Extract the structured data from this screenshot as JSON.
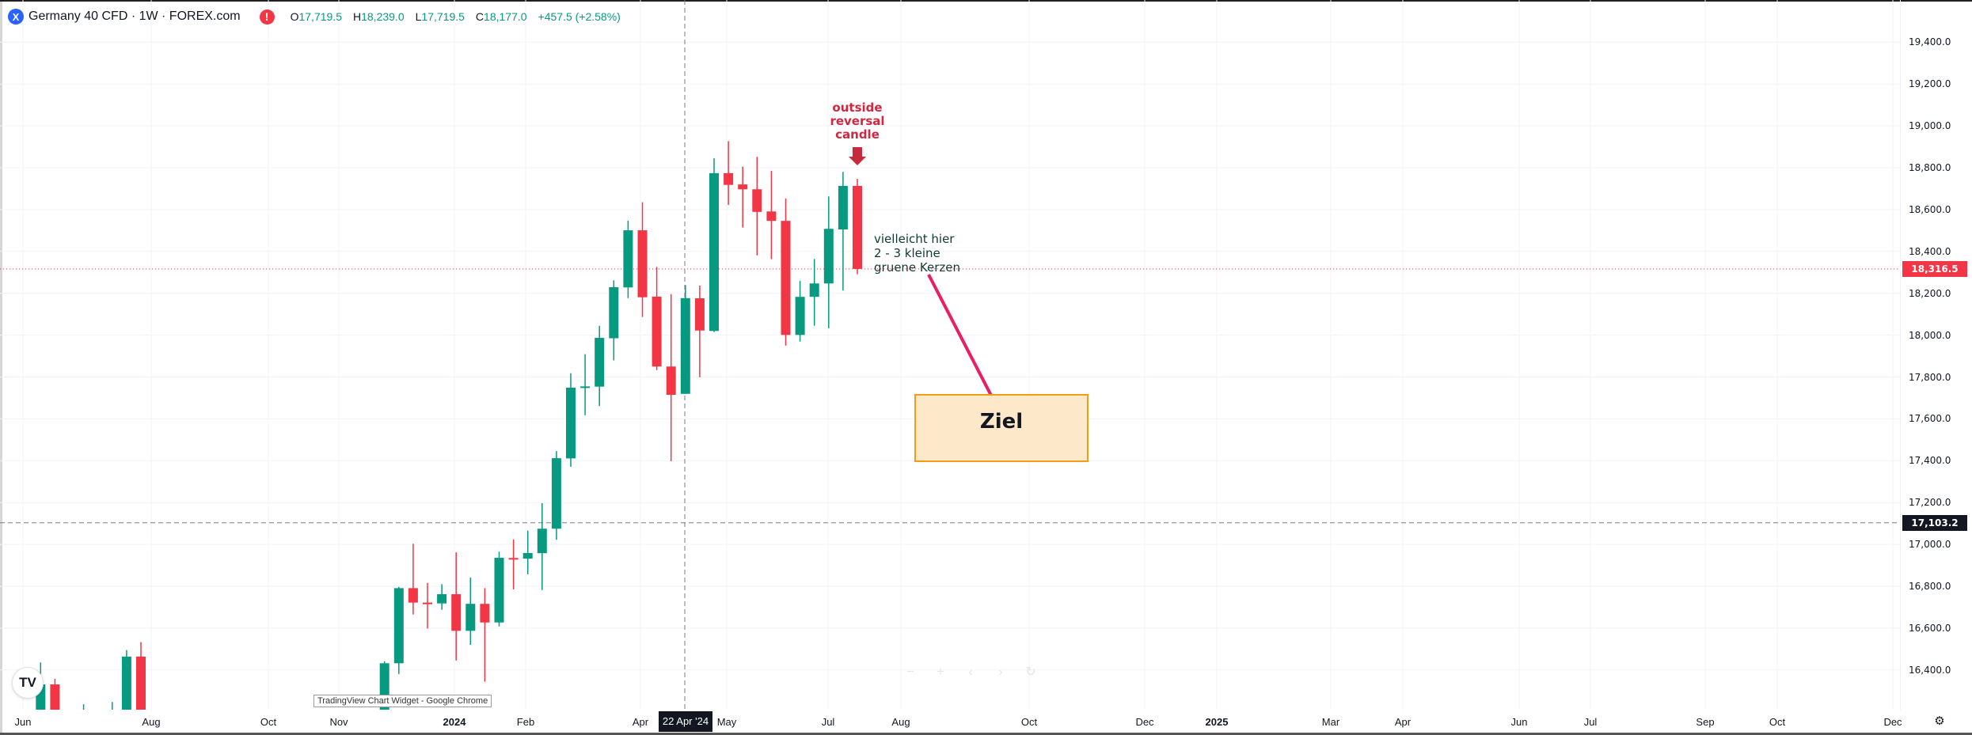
{
  "header": {
    "symbol_icon": "X",
    "title": "Germany 40 CFD · 1W · FOREX.com",
    "warning_icon": "!",
    "ohlc": {
      "o_label": "O",
      "o": "17,719.5",
      "h_label": "H",
      "h": "18,239.0",
      "l_label": "L",
      "l": "17,719.5",
      "c_label": "C",
      "c": "18,177.0",
      "change": "+457.5 (+2.58%)"
    }
  },
  "colors": {
    "up": "#089981",
    "down": "#f23645",
    "annotation_red": "#d0283e",
    "trend_line": "#e91e63",
    "target_fill": "#fde8c9",
    "target_border": "#f59b14"
  },
  "price_axis": {
    "ticks": [
      "19,400.0",
      "19,200.0",
      "19,000.0",
      "18,800.0",
      "18,600.0",
      "18,400.0",
      "18,200.0",
      "18,000.0",
      "17,800.0",
      "17,600.0",
      "17,400.0",
      "17,200.0",
      "17,000.0",
      "16,800.0",
      "16,600.0",
      "16,400.0"
    ],
    "last_price": "18,316.5",
    "crosshair_price": "17,103.2"
  },
  "time_axis": {
    "labels": [
      "Jun",
      "Aug",
      "Oct",
      "Nov",
      "2024",
      "Feb",
      "Apr",
      "May",
      "Jul",
      "Aug",
      "Oct",
      "Dec",
      "2025",
      "Mar",
      "Apr",
      "Jun",
      "Jul",
      "Sep",
      "Oct",
      "Dec"
    ],
    "crosshair_date": "22 Apr '24"
  },
  "annotations": {
    "reversal": [
      "outside",
      "reversal",
      "candle"
    ],
    "note": [
      "vielleicht hier",
      "2 - 3 kleine",
      "gruene Kerzen"
    ],
    "target": "Ziel"
  },
  "controls": {
    "zoom_out": "−",
    "zoom_in": "+",
    "scroll_left": "‹",
    "scroll_right": "›",
    "reset": "↻",
    "settings_icon": "⚙",
    "logo": "TV"
  },
  "window_tooltip": "TradingView Chart Widget - Google Chrome",
  "chart_data": {
    "type": "candlestick",
    "timeframe": "1W",
    "ylim": [
      16200,
      19560
    ],
    "last_price": 18316.5,
    "crosshair_price": 17103.2,
    "target_zone": [
      17400,
      17720
    ],
    "candles": [
      [
        16100,
        16436,
        15950,
        16331
      ],
      [
        16331,
        16358,
        15900,
        15990
      ],
      null,
      [
        15800,
        16236,
        15700,
        16150
      ],
      null,
      [
        16100,
        16247,
        15800,
        16150
      ],
      [
        16150,
        16495,
        16050,
        16464
      ],
      [
        16464,
        16533,
        15800,
        15950
      ],
      null,
      null,
      null,
      null,
      null,
      null,
      null,
      null,
      null,
      null,
      null,
      null,
      null,
      null,
      null,
      null,
      [
        16000,
        16441,
        15950,
        16432
      ],
      [
        16432,
        16797,
        16381,
        16791
      ],
      [
        16791,
        17003,
        16665,
        16722
      ],
      [
        16722,
        16816,
        16598,
        16715
      ],
      [
        16718,
        16810,
        16688,
        16762
      ],
      [
        16762,
        16962,
        16445,
        16587
      ],
      [
        16587,
        16842,
        16520,
        16716
      ],
      [
        16716,
        16791,
        16344,
        16627
      ],
      [
        16627,
        16965,
        16608,
        16936
      ],
      [
        16935,
        17024,
        16785,
        16932
      ],
      [
        16932,
        17066,
        16857,
        16959
      ],
      [
        16958,
        17197,
        16782,
        17075
      ],
      [
        17075,
        17446,
        17022,
        17412
      ],
      [
        17411,
        17818,
        17371,
        17749
      ],
      [
        17752,
        17909,
        17617,
        17755
      ],
      [
        17754,
        18045,
        17661,
        17987
      ],
      [
        17985,
        18262,
        17879,
        18229
      ],
      [
        18228,
        18547,
        18177,
        18501
      ],
      [
        18501,
        18635,
        18087,
        18181
      ],
      [
        18184,
        18326,
        17833,
        17850
      ],
      [
        17850,
        18196,
        17398,
        17715
      ],
      [
        17719.5,
        18239,
        17719.5,
        18177
      ],
      [
        18176,
        18237,
        17799,
        18022
      ],
      [
        18020,
        18845,
        18015,
        18774
      ],
      [
        18774,
        18927,
        18622,
        18718
      ],
      [
        18720,
        18805,
        18514,
        18697
      ],
      [
        18697,
        18852,
        18381,
        18589
      ],
      [
        18591,
        18785,
        18363,
        18546
      ],
      [
        18546,
        18653,
        17950,
        18001
      ],
      [
        18001,
        18259,
        17969,
        18183
      ],
      [
        18183,
        18364,
        18045,
        18247
      ],
      [
        18247,
        18663,
        18033,
        18508
      ],
      [
        18505,
        18780,
        18213,
        18713
      ],
      [
        18713,
        18747,
        18291,
        18316.5
      ]
    ]
  }
}
